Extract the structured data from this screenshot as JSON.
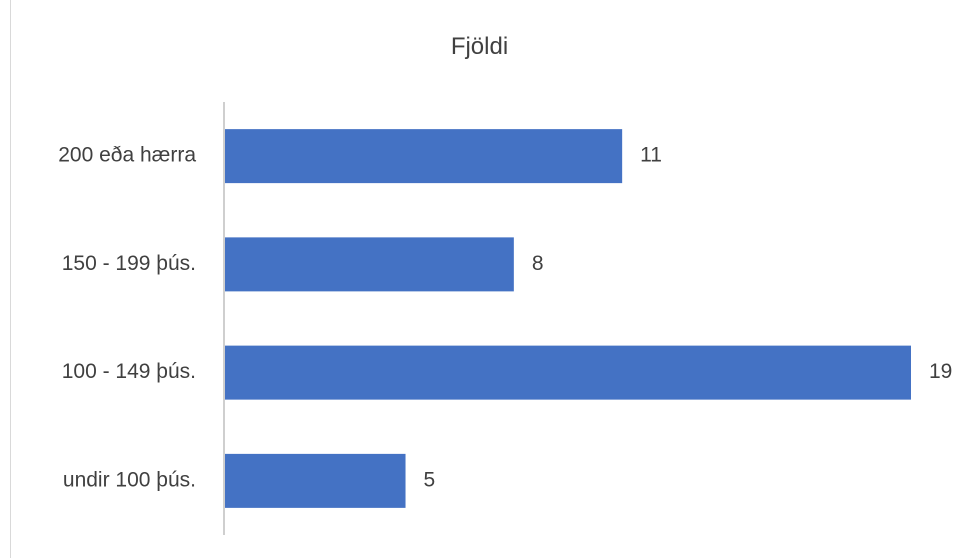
{
  "chart_data": {
    "type": "bar",
    "orientation": "horizontal",
    "title": "Fjöldi",
    "categories": [
      "200 eða hærra",
      "150 - 199 þús.",
      "100 - 149 þús.",
      "undir 100 þús."
    ],
    "values": [
      11,
      8,
      19,
      5
    ],
    "xlabel": "",
    "ylabel": "",
    "xlim": [
      0,
      19
    ],
    "grid": false,
    "legend": "none",
    "data_labels": true,
    "bar_color": "#4472c4"
  }
}
